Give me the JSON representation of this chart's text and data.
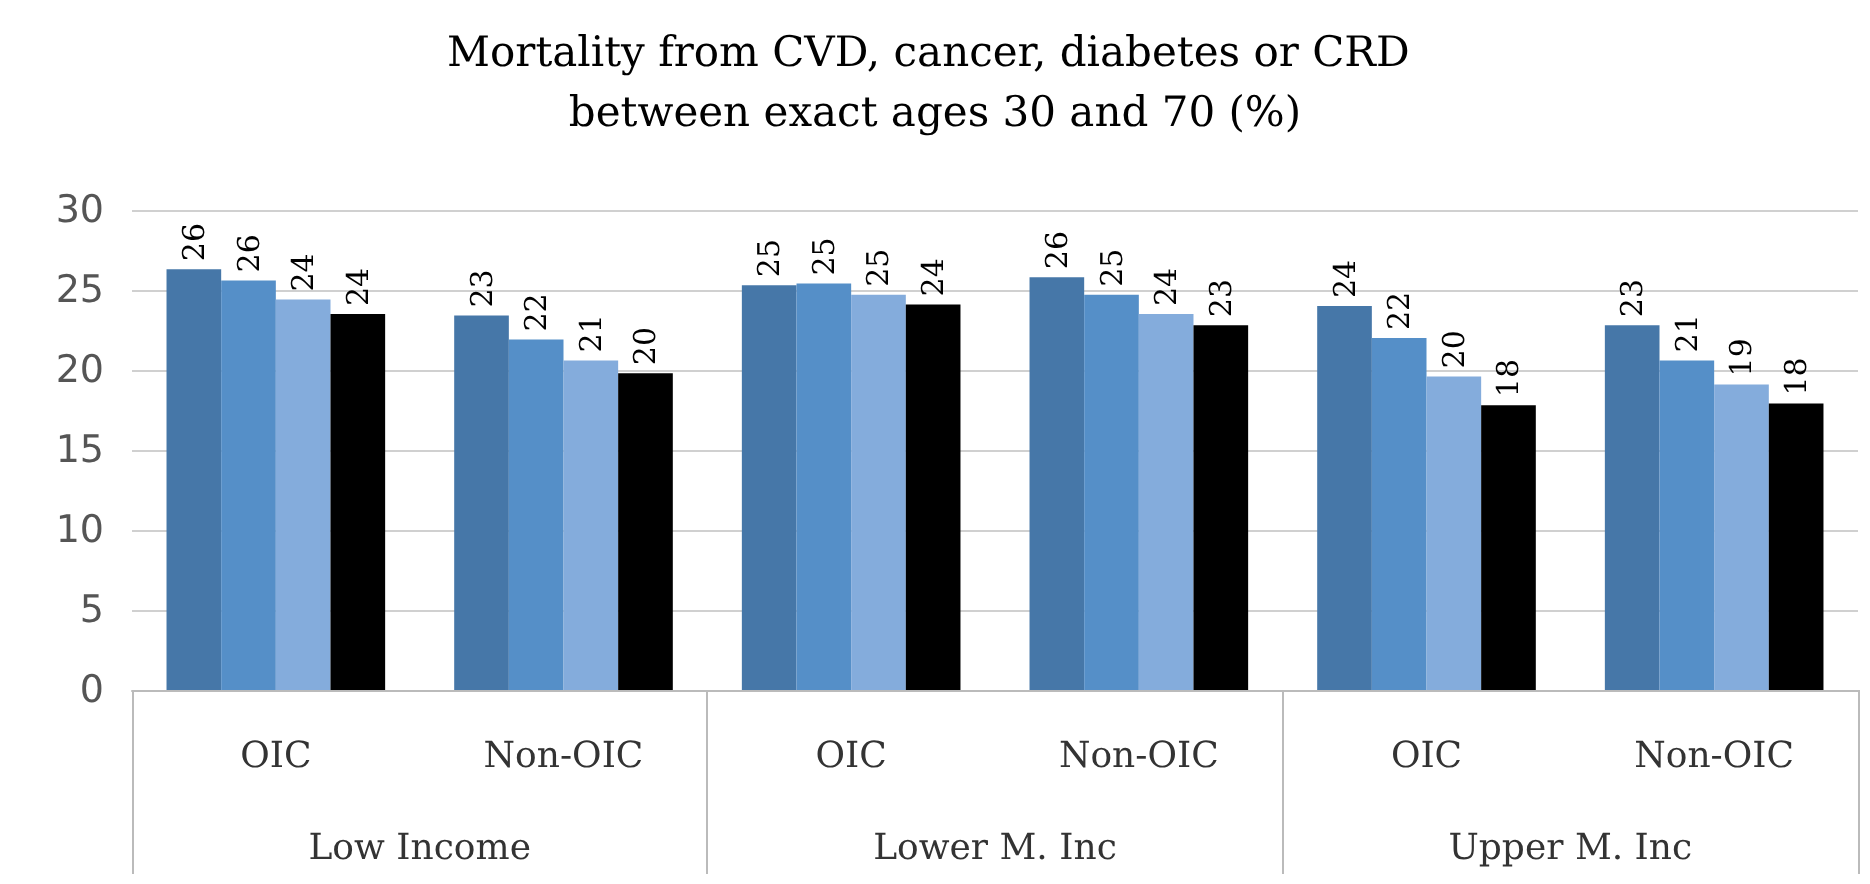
{
  "chart_data": {
    "type": "bar",
    "title": "Mortality from CVD, cancer, diabetes or CRD between exact ages 30 and 70 (%)",
    "categories": [
      "OIC",
      "Non-OIC",
      "OIC",
      "Non-OIC",
      "OIC",
      "Non-OIC"
    ],
    "annotations": [
      "Low Income",
      "Lower M. Inc",
      "Upper M. Inc"
    ],
    "series": [
      {
        "color": "#4677a8",
        "values": [
          26.3,
          23.4,
          25.3,
          25.8,
          24.0,
          22.8
        ],
        "value_labels": [
          "26",
          "23",
          "25",
          "26",
          "24",
          "23"
        ]
      },
      {
        "color": "#558fc8",
        "values": [
          25.6,
          21.9,
          25.4,
          24.7,
          22.0,
          20.6
        ],
        "value_labels": [
          "26",
          "22",
          "25",
          "25",
          "22",
          "21"
        ]
      },
      {
        "color": "#84acdc",
        "values": [
          24.4,
          20.6,
          24.7,
          23.5,
          19.6,
          19.1
        ],
        "value_labels": [
          "24",
          "21",
          "25",
          "24",
          "20",
          "19"
        ]
      },
      {
        "color": "#000000",
        "values": [
          23.5,
          19.8,
          24.1,
          22.8,
          17.8,
          17.9
        ],
        "value_labels": [
          "24",
          "20",
          "24",
          "23",
          "18",
          "18"
        ]
      }
    ],
    "ylim": [
      0,
      30
    ],
    "yticks": [
      0,
      5,
      10,
      15,
      20,
      25,
      30
    ],
    "grid": "y"
  }
}
